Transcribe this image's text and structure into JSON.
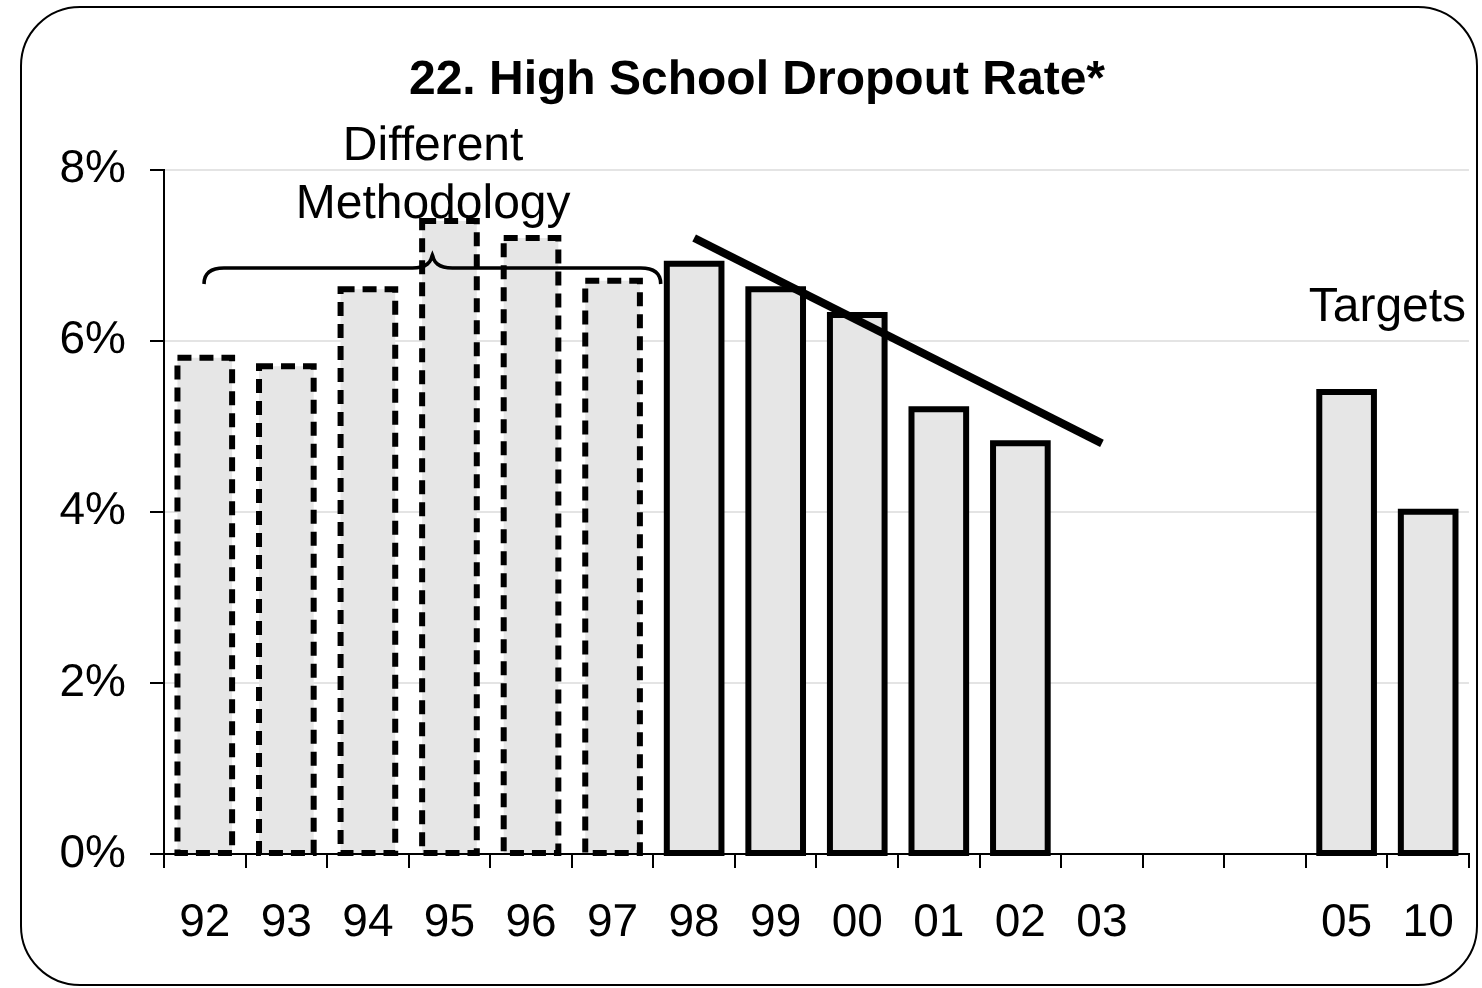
{
  "chart_data": {
    "type": "bar",
    "title": "22. High School Dropout Rate*",
    "categories": [
      "92",
      "93",
      "94",
      "95",
      "96",
      "97",
      "98",
      "99",
      "00",
      "01",
      "02",
      "03",
      null,
      null,
      "05",
      "10"
    ],
    "series": [
      {
        "color": "#e6e6e6",
        "line_style": "dashed",
        "values": [
          5.8,
          5.7,
          6.6,
          7.4,
          7.2,
          6.7,
          null,
          null,
          null,
          null,
          null,
          null,
          null,
          null,
          null,
          null
        ]
      },
      {
        "color": "#e6e6e6",
        "values": [
          null,
          null,
          null,
          null,
          null,
          null,
          6.9,
          6.6,
          6.3,
          5.2,
          4.8,
          null,
          null,
          null,
          5.4,
          4.0
        ]
      },
      {
        "type": "line",
        "color": "#000000",
        "x": [
          "98",
          "03"
        ],
        "values": [
          7.2,
          4.8
        ]
      }
    ],
    "ylim": [
      0,
      8
    ],
    "yticks": [
      {
        "value": 0,
        "label": "0%"
      },
      {
        "value": 2,
        "label": "2%"
      },
      {
        "value": 4,
        "label": "4%"
      },
      {
        "value": 6,
        "label": "6%"
      },
      {
        "value": 8,
        "label": "8%"
      }
    ],
    "grid": "y",
    "annotations": [
      "Different Methodology",
      "Targets"
    ]
  }
}
